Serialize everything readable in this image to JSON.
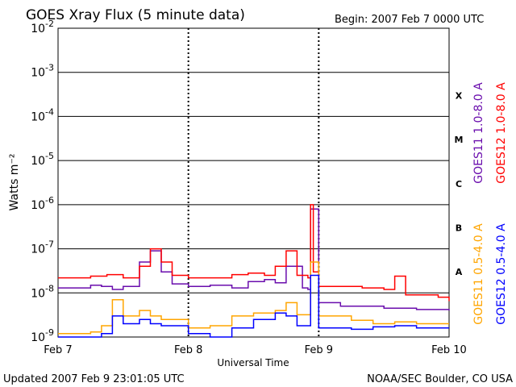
{
  "header": {
    "title": "GOES Xray Flux (5 minute data)",
    "begin": "Begin:  2007 Feb 7 0000 UTC"
  },
  "footer": {
    "updated": "Updated 2007 Feb  9 23:01:05 UTC",
    "credit": "NOAA/SEC Boulder, CO USA"
  },
  "colors": {
    "goes11_long": "#6a0dad",
    "goes12_long": "#ff0000",
    "goes11_short": "#ffa500",
    "goes12_short": "#0000ff",
    "grid": "#000000"
  },
  "chart_data": {
    "type": "line",
    "title": "GOES Xray Flux (5 minute data)",
    "xlabel": "Universal Time",
    "ylabel": "Watts m⁻²",
    "y_scale": "log",
    "ylim": [
      1e-09,
      0.01
    ],
    "xlim": [
      "2007-02-07",
      "2007-02-10"
    ],
    "x_ticks": [
      "Feb 7",
      "Feb 8",
      "Feb 9",
      "Feb 10"
    ],
    "y_ticks": [
      {
        "base": "10",
        "exp": "-2",
        "value": 0.01
      },
      {
        "base": "10",
        "exp": "-3",
        "value": 0.001
      },
      {
        "base": "10",
        "exp": "-4",
        "value": 0.0001
      },
      {
        "base": "10",
        "exp": "-5",
        "value": 1e-05
      },
      {
        "base": "10",
        "exp": "-6",
        "value": 1e-06
      },
      {
        "base": "10",
        "exp": "-7",
        "value": 1e-07
      },
      {
        "base": "10",
        "exp": "-8",
        "value": 1e-08
      },
      {
        "base": "10",
        "exp": "-9",
        "value": 1e-09
      }
    ],
    "flare_classes": [
      {
        "label": "X",
        "value": 0.0003
      },
      {
        "label": "M",
        "value": 3e-05
      },
      {
        "label": "C",
        "value": 3e-06
      },
      {
        "label": "B",
        "value": 3e-07
      },
      {
        "label": "A",
        "value": 3e-08
      }
    ],
    "legend_placement": "right",
    "series": [
      {
        "name": "GOES11 1.0-8.0 A",
        "key": "goes11_long",
        "x": [
          "2007-02-07 00:00",
          "2007-02-07 06:00",
          "2007-02-07 08:00",
          "2007-02-07 10:00",
          "2007-02-07 12:00",
          "2007-02-07 15:00",
          "2007-02-07 17:00",
          "2007-02-07 19:00",
          "2007-02-07 21:00",
          "2007-02-08 00:00",
          "2007-02-08 04:00",
          "2007-02-08 08:00",
          "2007-02-08 11:00",
          "2007-02-08 14:00",
          "2007-02-08 16:00",
          "2007-02-08 18:00",
          "2007-02-08 21:00",
          "2007-02-08 22:00",
          "2007-02-08 22:30",
          "2007-02-09 00:00",
          "2007-02-09 04:00",
          "2007-02-09 12:00",
          "2007-02-09 18:00",
          "2007-02-10 00:00"
        ],
        "y": [
          1.3e-08,
          1.5e-08,
          1.4e-08,
          1.2e-08,
          1.4e-08,
          5e-08,
          9e-08,
          3e-08,
          1.6e-08,
          1.4e-08,
          1.5e-08,
          1.3e-08,
          1.8e-08,
          2e-08,
          1.7e-08,
          4e-08,
          1.3e-08,
          1.2e-08,
          8e-07,
          6e-09,
          5e-09,
          4.5e-09,
          4.2e-09,
          4e-09
        ]
      },
      {
        "name": "GOES12 1.0-8.0 A",
        "key": "goes12_long",
        "x": [
          "2007-02-07 00:00",
          "2007-02-07 06:00",
          "2007-02-07 09:00",
          "2007-02-07 12:00",
          "2007-02-07 15:00",
          "2007-02-07 17:00",
          "2007-02-07 19:00",
          "2007-02-07 21:00",
          "2007-02-08 00:00",
          "2007-02-08 05:00",
          "2007-02-08 08:00",
          "2007-02-08 11:00",
          "2007-02-08 14:00",
          "2007-02-08 16:00",
          "2007-02-08 18:00",
          "2007-02-08 20:00",
          "2007-02-08 22:00",
          "2007-02-08 22:30",
          "2007-02-08 23:00",
          "2007-02-09 00:00",
          "2007-02-09 08:00",
          "2007-02-09 12:00",
          "2007-02-09 14:00",
          "2007-02-09 16:00",
          "2007-02-09 22:00",
          "2007-02-10 00:00"
        ],
        "y": [
          2.2e-08,
          2.4e-08,
          2.6e-08,
          2.2e-08,
          4e-08,
          1e-07,
          5e-08,
          2.5e-08,
          2.2e-08,
          2.2e-08,
          2.6e-08,
          2.8e-08,
          2.5e-08,
          4e-08,
          9e-08,
          2.5e-08,
          2.2e-08,
          1e-06,
          3e-08,
          1.4e-08,
          1.3e-08,
          1.2e-08,
          2.4e-08,
          9e-09,
          8e-09,
          6.5e-09
        ]
      },
      {
        "name": "GOES11 0.5-4.0 A",
        "key": "goes11_short",
        "x": [
          "2007-02-07 00:00",
          "2007-02-07 04:00",
          "2007-02-07 06:00",
          "2007-02-07 08:00",
          "2007-02-07 10:00",
          "2007-02-07 12:00",
          "2007-02-07 15:00",
          "2007-02-07 17:00",
          "2007-02-07 19:00",
          "2007-02-08 00:00",
          "2007-02-08 04:00",
          "2007-02-08 08:00",
          "2007-02-08 12:00",
          "2007-02-08 16:00",
          "2007-02-08 18:00",
          "2007-02-08 20:00",
          "2007-02-08 22:30",
          "2007-02-09 00:00",
          "2007-02-09 06:00",
          "2007-02-09 10:00",
          "2007-02-09 14:00",
          "2007-02-09 18:00",
          "2007-02-10 00:00"
        ],
        "y": [
          1.2e-09,
          1.2e-09,
          1.3e-09,
          1.8e-09,
          7e-09,
          3e-09,
          4e-09,
          3e-09,
          2.5e-09,
          1.6e-09,
          1.8e-09,
          3e-09,
          3.5e-09,
          4e-09,
          6e-09,
          3.2e-09,
          5e-08,
          3e-09,
          2.4e-09,
          2e-09,
          2.2e-09,
          2e-09,
          2e-09
        ]
      },
      {
        "name": "GOES12 0.5-4.0 A",
        "key": "goes12_short",
        "x": [
          "2007-02-07 00:00",
          "2007-02-07 04:00",
          "2007-02-07 06:00",
          "2007-02-07 08:00",
          "2007-02-07 10:00",
          "2007-02-07 12:00",
          "2007-02-07 15:00",
          "2007-02-07 17:00",
          "2007-02-07 19:00",
          "2007-02-08 00:00",
          "2007-02-08 04:00",
          "2007-02-08 08:00",
          "2007-02-08 12:00",
          "2007-02-08 16:00",
          "2007-02-08 18:00",
          "2007-02-08 20:00",
          "2007-02-08 22:30",
          "2007-02-09 00:00",
          "2007-02-09 06:00",
          "2007-02-09 10:00",
          "2007-02-09 14:00",
          "2007-02-09 18:00",
          "2007-02-10 00:00"
        ],
        "y": [
          1e-09,
          1e-09,
          1e-09,
          1.2e-09,
          3e-09,
          2e-09,
          2.5e-09,
          2e-09,
          1.8e-09,
          1.2e-09,
          1e-09,
          1.6e-09,
          2.5e-09,
          3.5e-09,
          3e-09,
          1.8e-09,
          2.5e-08,
          1.6e-09,
          1.5e-09,
          1.7e-09,
          1.8e-09,
          1.6e-09,
          1.6e-09
        ]
      }
    ]
  }
}
